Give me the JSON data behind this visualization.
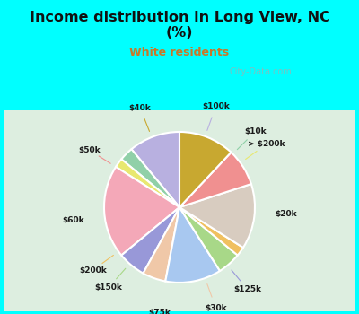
{
  "title": "Income distribution in Long View, NC\n(%)",
  "subtitle": "White residents",
  "title_color": "#111111",
  "subtitle_color": "#c87828",
  "bg_color": "#00ffff",
  "chart_bg_color": "#e0f0e8",
  "labels": [
    "$100k",
    "$10k",
    "> $200k",
    "$20k",
    "$125k",
    "$30k",
    "$75k",
    "$150k",
    "$200k",
    "$60k",
    "$50k",
    "$40k"
  ],
  "values": [
    11,
    3,
    2,
    20,
    6,
    5,
    12,
    5,
    2,
    14,
    8,
    12
  ],
  "colors": [
    "#b8b0e0",
    "#90d0a8",
    "#e8e870",
    "#f4a8b8",
    "#9898d8",
    "#f0c8a8",
    "#a8c8f0",
    "#a8d888",
    "#f0c060",
    "#d8ccc0",
    "#f09090",
    "#c8a830"
  ],
  "watermark": "City-Data.com",
  "startangle": 90
}
